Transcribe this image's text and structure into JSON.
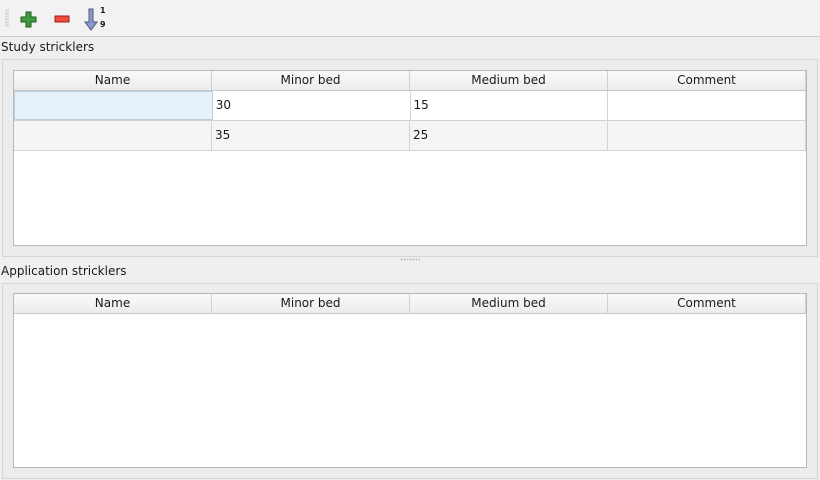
{
  "toolbar": {
    "add": "plus-icon",
    "remove": "minus-icon",
    "sort": "sort-ascending-icon",
    "sort_digits_top": "1",
    "sort_digits_bottom": "9"
  },
  "study": {
    "title": "Study stricklers",
    "columns": [
      "Name",
      "Minor bed",
      "Medium bed",
      "Comment"
    ],
    "rows": [
      [
        "",
        "30",
        "15",
        ""
      ],
      [
        "",
        "35",
        "25",
        ""
      ]
    ]
  },
  "application": {
    "title": "Application stricklers",
    "columns": [
      "Name",
      "Minor bed",
      "Medium bed",
      "Comment"
    ],
    "rows": []
  }
}
